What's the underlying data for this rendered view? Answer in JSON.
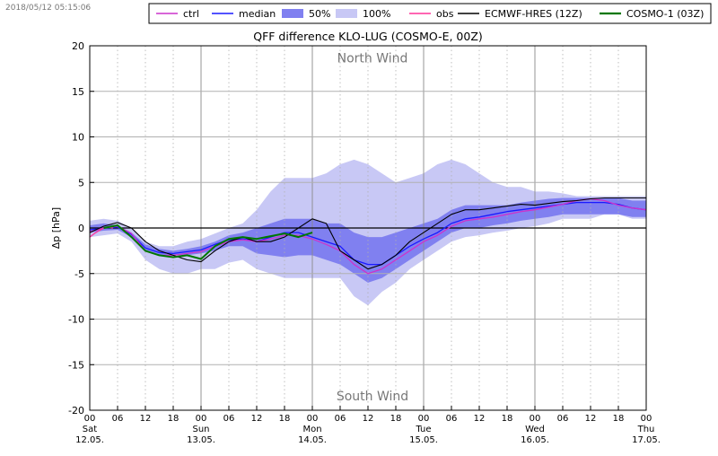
{
  "timestamp": "2018/05/12 05:15:06",
  "chart_data": {
    "type": "line",
    "title": "QFF difference KLO-LUG (COSMO-E, 00Z)",
    "xlabel": "",
    "ylabel": "Δp [hPa]",
    "ylim": [
      -20,
      20
    ],
    "xlim_hours": [
      0,
      120
    ],
    "yticks": [
      20,
      15,
      10,
      5,
      0,
      -5,
      -10,
      -15,
      -20
    ],
    "annotations": {
      "top": "North Wind",
      "bottom": "South Wind"
    },
    "xticks": [
      {
        "h": 0,
        "label": "00",
        "day": "Sat",
        "date": "12.05."
      },
      {
        "h": 6,
        "label": "06"
      },
      {
        "h": 12,
        "label": "12"
      },
      {
        "h": 18,
        "label": "18"
      },
      {
        "h": 24,
        "label": "00",
        "day": "Sun",
        "date": "13.05."
      },
      {
        "h": 30,
        "label": "06"
      },
      {
        "h": 36,
        "label": "12"
      },
      {
        "h": 42,
        "label": "18"
      },
      {
        "h": 48,
        "label": "00",
        "day": "Mon",
        "date": "14.05."
      },
      {
        "h": 54,
        "label": "06"
      },
      {
        "h": 60,
        "label": "12"
      },
      {
        "h": 66,
        "label": "18"
      },
      {
        "h": 72,
        "label": "00",
        "day": "Tue",
        "date": "15.05."
      },
      {
        "h": 78,
        "label": "06"
      },
      {
        "h": 84,
        "label": "12"
      },
      {
        "h": 90,
        "label": "18"
      },
      {
        "h": 96,
        "label": "00",
        "day": "Wed",
        "date": "16.05."
      },
      {
        "h": 102,
        "label": "06"
      },
      {
        "h": 108,
        "label": "12"
      },
      {
        "h": 114,
        "label": "18"
      },
      {
        "h": 120,
        "label": "00",
        "day": "Thu",
        "date": "17.05."
      }
    ],
    "legend": [
      {
        "label": "ctrl",
        "color": "#cc33cc",
        "kind": "line"
      },
      {
        "label": "median",
        "color": "#1a1aff",
        "kind": "line"
      },
      {
        "label": "50%",
        "color": "#8080f0",
        "kind": "patch"
      },
      {
        "label": "100%",
        "color": "#c8c8f5",
        "kind": "patch"
      },
      {
        "label": "obs",
        "color": "#ff3399",
        "kind": "line"
      },
      {
        "label": "ECMWF-HRES (12Z)",
        "color": "#000000",
        "kind": "line"
      },
      {
        "label": "COSMO-1 (03Z)",
        "color": "#007700",
        "kind": "line"
      }
    ],
    "hours": [
      0,
      3,
      6,
      9,
      12,
      15,
      18,
      21,
      24,
      27,
      30,
      33,
      36,
      39,
      42,
      45,
      48,
      51,
      54,
      57,
      60,
      63,
      66,
      69,
      72,
      75,
      78,
      81,
      84,
      87,
      90,
      93,
      96,
      99,
      102,
      105,
      108,
      111,
      114,
      117,
      120
    ],
    "band100": {
      "lower": [
        -1.0,
        -0.8,
        -0.6,
        -1.5,
        -3.5,
        -4.5,
        -5.0,
        -5.0,
        -4.5,
        -4.5,
        -3.8,
        -3.5,
        -4.5,
        -5.0,
        -5.5,
        -5.5,
        -5.5,
        -5.5,
        -5.5,
        -7.5,
        -8.5,
        -7.0,
        -6.0,
        -4.5,
        -3.5,
        -2.5,
        -1.5,
        -1.0,
        -0.8,
        -0.5,
        -0.3,
        0.0,
        0.2,
        0.5,
        1.0,
        1.0,
        1.0,
        1.5,
        1.5,
        1.0,
        1.0
      ],
      "upper": [
        0.8,
        1.0,
        0.8,
        0.0,
        -1.5,
        -2.0,
        -2.0,
        -1.5,
        -1.2,
        -0.6,
        0.0,
        0.5,
        2.0,
        4.0,
        5.5,
        5.5,
        5.5,
        6.0,
        7.0,
        7.5,
        7.0,
        6.0,
        5.0,
        5.5,
        6.0,
        7.0,
        7.5,
        7.0,
        6.0,
        5.0,
        4.5,
        4.5,
        4.0,
        4.0,
        3.8,
        3.5,
        3.5,
        3.5,
        3.5,
        3.5,
        3.5
      ]
    },
    "band50": {
      "lower": [
        -0.5,
        -0.3,
        -0.2,
        -1.0,
        -2.5,
        -3.0,
        -3.0,
        -3.0,
        -2.8,
        -2.5,
        -2.0,
        -2.0,
        -2.8,
        -3.0,
        -3.2,
        -3.0,
        -3.0,
        -3.5,
        -4.0,
        -5.0,
        -6.0,
        -5.5,
        -4.5,
        -3.5,
        -2.5,
        -1.5,
        -0.5,
        0.0,
        0.0,
        0.3,
        0.5,
        0.8,
        1.0,
        1.2,
        1.5,
        1.5,
        1.5,
        1.5,
        1.5,
        1.2,
        1.2
      ],
      "upper": [
        0.3,
        0.5,
        0.3,
        -0.5,
        -1.8,
        -2.3,
        -2.5,
        -2.3,
        -2.0,
        -1.5,
        -0.8,
        -0.5,
        0.0,
        0.5,
        1.0,
        1.0,
        1.0,
        0.5,
        0.5,
        -0.5,
        -1.0,
        -1.0,
        -0.5,
        0.0,
        0.5,
        1.0,
        2.0,
        2.5,
        2.5,
        2.5,
        2.5,
        2.8,
        3.0,
        3.2,
        3.3,
        3.3,
        3.3,
        3.3,
        3.3,
        3.0,
        3.0
      ]
    },
    "series": [
      {
        "name": "median",
        "color": "#1a1aff",
        "width": 1.3,
        "x": [
          0,
          3,
          6,
          9,
          12,
          15,
          18,
          21,
          24,
          27,
          30,
          33,
          36,
          39,
          42,
          45,
          48,
          51,
          54,
          57,
          60,
          63,
          66,
          69,
          72,
          75,
          78,
          81,
          84,
          87,
          90,
          93,
          96,
          99,
          102,
          105,
          108,
          111,
          114,
          117,
          120
        ],
        "y": [
          -0.2,
          0.0,
          0.1,
          -0.7,
          -2.2,
          -2.7,
          -2.8,
          -2.6,
          -2.4,
          -1.8,
          -1.3,
          -1.2,
          -1.5,
          -1.0,
          -0.5,
          -0.5,
          -1.0,
          -1.5,
          -2.0,
          -3.5,
          -4.0,
          -4.0,
          -3.0,
          -2.0,
          -1.2,
          -0.5,
          0.5,
          1.0,
          1.2,
          1.5,
          1.8,
          2.0,
          2.2,
          2.4,
          2.6,
          2.8,
          2.8,
          2.8,
          2.6,
          2.2,
          2.0
        ]
      },
      {
        "name": "ctrl",
        "color": "#cc33cc",
        "width": 1.3,
        "x": [
          0,
          3,
          6,
          9,
          12,
          15,
          18,
          21,
          24,
          27,
          30,
          33,
          36,
          39,
          42,
          45,
          48,
          51,
          54,
          57,
          60,
          63,
          66,
          69,
          72,
          75,
          78,
          81,
          84,
          87,
          90,
          93,
          96,
          99,
          102,
          105,
          108,
          111,
          114,
          117,
          120
        ],
        "y": [
          -0.4,
          0.0,
          0.2,
          -0.6,
          -2.5,
          -3.0,
          -3.0,
          -2.8,
          -2.6,
          -2.0,
          -1.5,
          -1.3,
          -1.5,
          -1.2,
          -0.8,
          -0.8,
          -1.2,
          -1.8,
          -2.5,
          -4.0,
          -5.0,
          -4.5,
          -3.5,
          -2.5,
          -1.5,
          -0.8,
          0.2,
          0.8,
          1.0,
          1.2,
          1.5,
          1.8,
          2.0,
          2.3,
          2.6,
          3.0,
          3.2,
          3.0,
          2.5,
          2.2,
          2.0
        ]
      },
      {
        "name": "obs",
        "color": "#ff3399",
        "width": 1.3,
        "x": [
          0,
          1,
          2,
          3,
          4,
          5
        ],
        "y": [
          -1.0,
          -0.6,
          -0.3,
          0.0,
          0.1,
          0.0
        ]
      },
      {
        "name": "ECMWF-HRES (12Z)",
        "color": "#000000",
        "width": 1.1,
        "x": [
          0,
          3,
          6,
          9,
          12,
          15,
          18,
          21,
          24,
          27,
          30,
          33,
          36,
          39,
          42,
          45,
          48,
          51,
          54,
          57,
          60,
          63,
          66,
          69,
          72,
          75,
          78,
          81,
          84,
          87,
          90,
          93,
          96,
          99,
          102,
          105,
          108,
          111,
          114,
          117,
          120
        ],
        "y": [
          -0.5,
          0.2,
          0.6,
          0.0,
          -1.5,
          -2.5,
          -3.0,
          -3.5,
          -3.7,
          -2.5,
          -1.5,
          -1.0,
          -1.5,
          -1.5,
          -1.0,
          0.0,
          1.0,
          0.5,
          -2.5,
          -3.5,
          -4.5,
          -4.0,
          -3.0,
          -1.5,
          -0.5,
          0.5,
          1.5,
          2.0,
          2.0,
          2.2,
          2.4,
          2.6,
          2.5,
          2.7,
          2.9,
          3.0,
          3.2,
          3.3,
          3.3,
          3.3,
          3.3
        ]
      },
      {
        "name": "COSMO-1 (03Z)",
        "color": "#007700",
        "width": 2.0,
        "x": [
          3,
          6,
          9,
          12,
          15,
          18,
          21,
          24,
          27,
          30,
          33,
          36,
          38,
          40,
          42,
          45,
          48
        ],
        "y": [
          0.0,
          0.3,
          -1.0,
          -2.5,
          -3.0,
          -3.2,
          -3.0,
          -3.4,
          -2.0,
          -1.2,
          -1.0,
          -1.2,
          -1.0,
          -0.8,
          -0.6,
          -1.0,
          -0.5
        ]
      }
    ]
  }
}
